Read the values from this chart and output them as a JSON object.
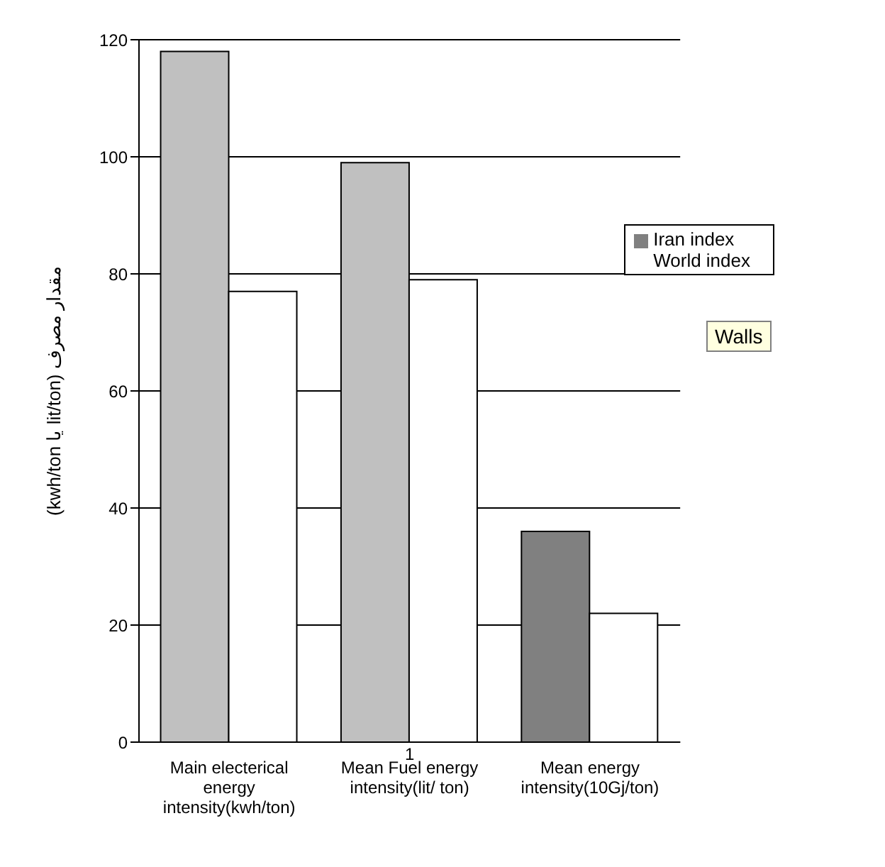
{
  "chart_data": {
    "type": "bar",
    "ylabel": "(kwh/ton یا lit/ton) مقدار مصرف",
    "xlabel": "1",
    "categories": [
      "Main electerical energy intensity(kwh/ton)",
      "Mean Fuel energy intensity(lit/ ton)",
      "Mean energy intensity(10Gj/ton)"
    ],
    "series": [
      {
        "name": "Iran index",
        "color": "#808080",
        "colors": [
          "#c0c0c0",
          "#c0c0c0",
          "#808080"
        ],
        "values": [
          118,
          99,
          36
        ]
      },
      {
        "name": "World index",
        "color": "#ffffff",
        "values": [
          77,
          79,
          22
        ]
      }
    ],
    "ylim": [
      0,
      120
    ],
    "yticks": [
      0,
      20,
      40,
      60,
      80,
      100,
      120
    ],
    "grid": "y",
    "legend": "top right",
    "annotations": [
      "Walls"
    ]
  }
}
